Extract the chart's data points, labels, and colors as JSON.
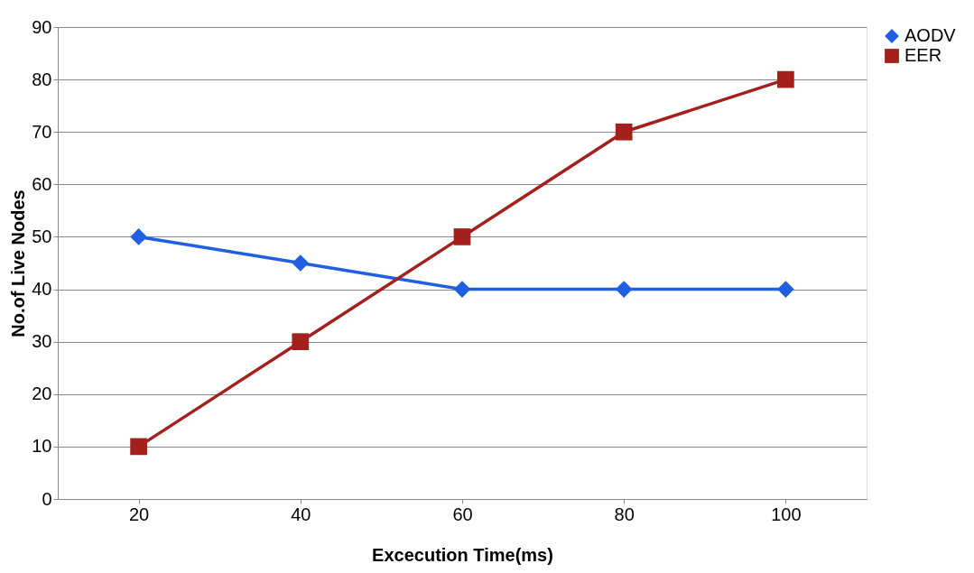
{
  "chart_data": {
    "type": "line",
    "xlabel": "Excecution Time(ms)",
    "ylabel": "No.of Live Nodes",
    "categories": [
      "20",
      "40",
      "60",
      "80",
      "100"
    ],
    "ylim": [
      0,
      90
    ],
    "yticks": [
      0,
      10,
      20,
      30,
      40,
      50,
      60,
      70,
      80,
      90
    ],
    "grid": "y",
    "legend": "right",
    "line_style": "solid",
    "series": [
      {
        "name": "AODV",
        "color": "#1f5fe0",
        "marker": "diamond",
        "values": [
          50,
          45,
          40,
          40,
          40
        ]
      },
      {
        "name": "EER",
        "color": "#a3201d",
        "marker": "square",
        "values": [
          10,
          30,
          50,
          70,
          80
        ]
      }
    ]
  }
}
